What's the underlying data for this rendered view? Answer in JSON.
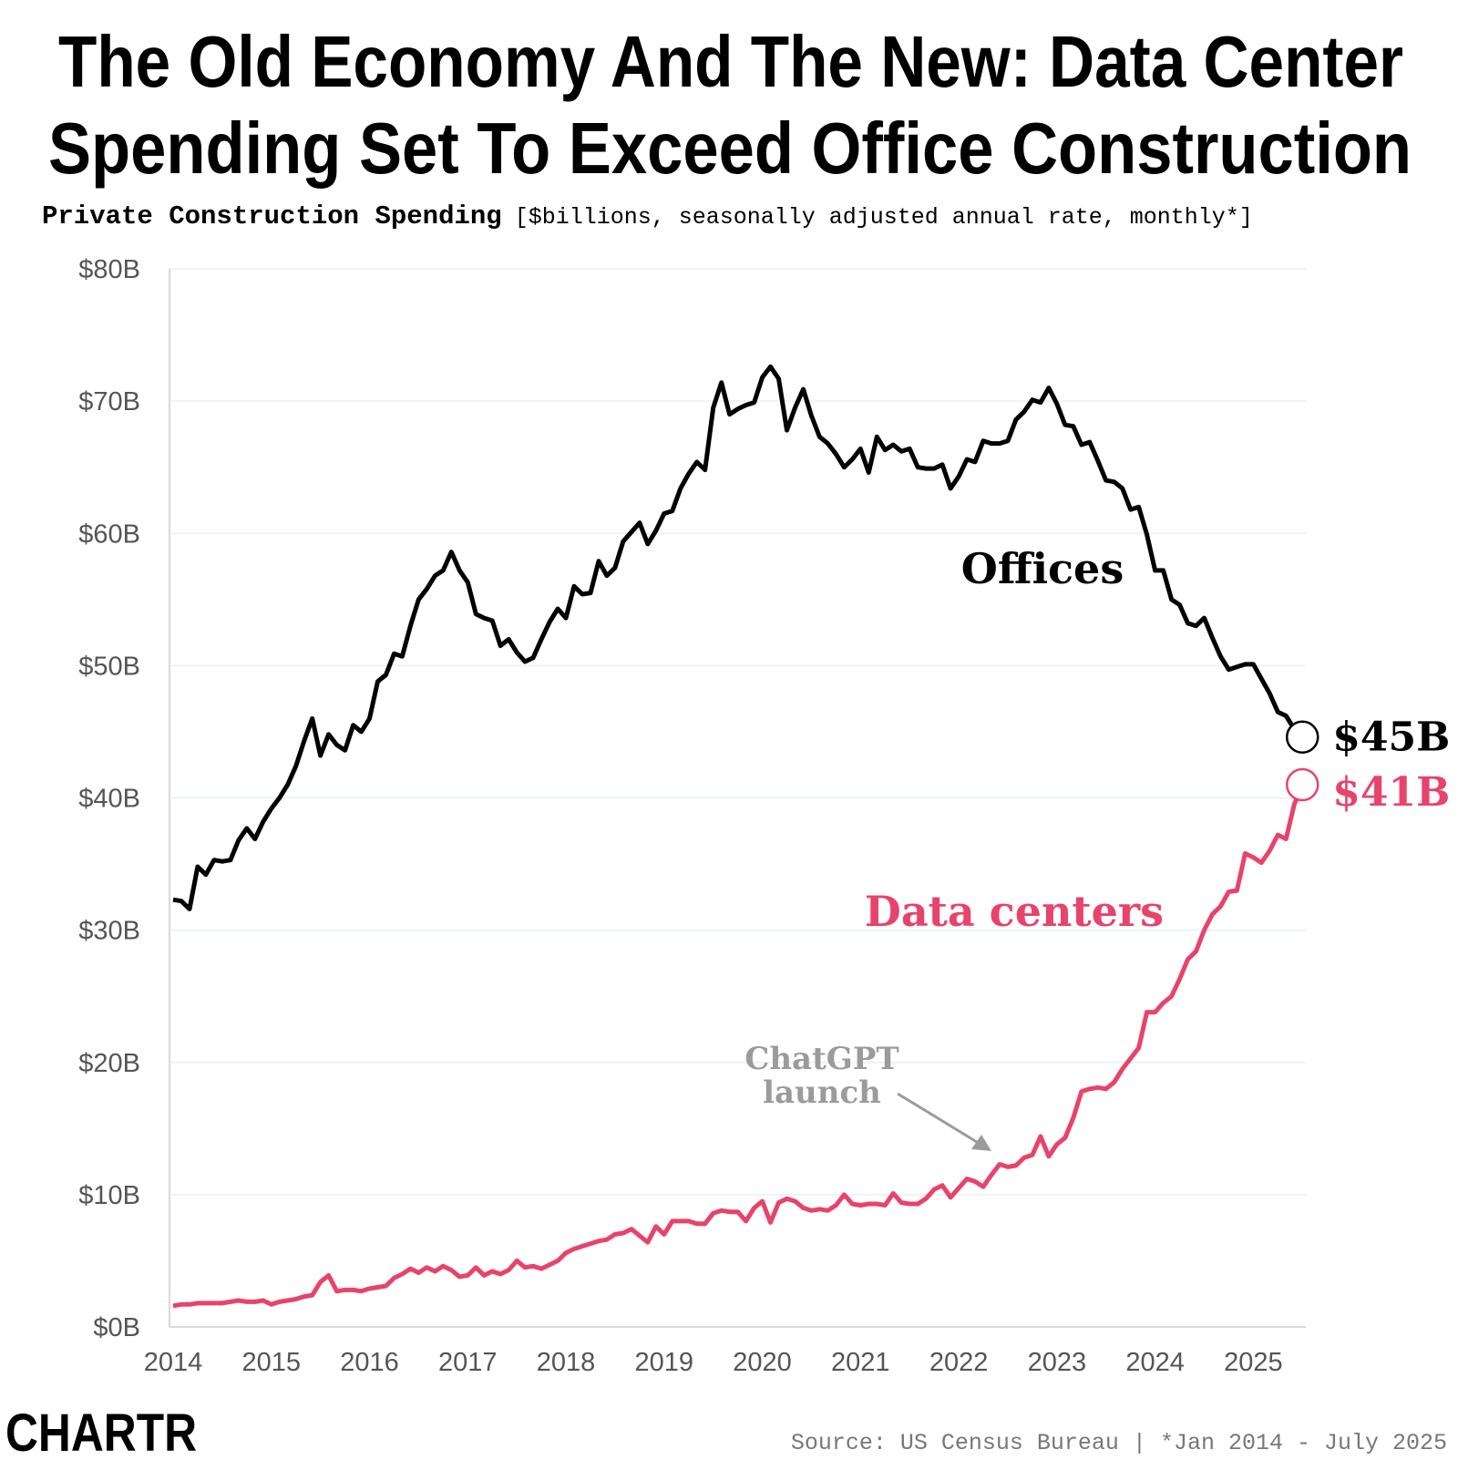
{
  "chart_data": {
    "type": "line",
    "title": [
      "The Old Economy And The New: Data Center",
      "Spending Set To Exceed Office Construction"
    ],
    "subtitle": {
      "bold": "Private Construction Spending",
      "regular": "[$billions, seasonally adjusted annual rate, monthly*]"
    },
    "categories": [
      "2014",
      null,
      null,
      null,
      null,
      null,
      null,
      null,
      null,
      null,
      null,
      null,
      "2015",
      null,
      null,
      null,
      null,
      null,
      null,
      null,
      null,
      null,
      null,
      null,
      "2016",
      null,
      null,
      null,
      null,
      null,
      null,
      null,
      null,
      null,
      null,
      null,
      "2017",
      null,
      null,
      null,
      null,
      null,
      null,
      null,
      null,
      null,
      null,
      null,
      "2018",
      null,
      null,
      null,
      null,
      null,
      null,
      null,
      null,
      null,
      null,
      null,
      "2019",
      null,
      null,
      null,
      null,
      null,
      null,
      null,
      null,
      null,
      null,
      null,
      "2020",
      null,
      null,
      null,
      null,
      null,
      null,
      null,
      null,
      null,
      null,
      null,
      "2021",
      null,
      null,
      null,
      null,
      null,
      null,
      null,
      null,
      null,
      null,
      null,
      "2022",
      null,
      null,
      null,
      null,
      null,
      null,
      null,
      null,
      null,
      null,
      null,
      "2023",
      null,
      null,
      null,
      null,
      null,
      null,
      null,
      null,
      null,
      null,
      null,
      "2024",
      null,
      null,
      null,
      null,
      null,
      null,
      null,
      null,
      null,
      null,
      null,
      "2025",
      null,
      null,
      null,
      null,
      null,
      null
    ],
    "series": [
      {
        "name": "Offices",
        "color": "#000000",
        "end_label": "$45B",
        "values": [
          32.3,
          32.2,
          31.6,
          34.8,
          34.2,
          35.3,
          35.2,
          35.3,
          36.8,
          37.7,
          36.9,
          38.2,
          39.2,
          40.0,
          41.0,
          42.4,
          44.3,
          46.0,
          43.2,
          44.8,
          44.0,
          43.6,
          45.5,
          45.0,
          46.0,
          48.8,
          49.3,
          50.9,
          50.7,
          53.0,
          55.0,
          55.8,
          56.8,
          57.2,
          58.6,
          57.2,
          56.3,
          53.9,
          53.6,
          53.4,
          51.5,
          52.0,
          51.0,
          50.3,
          50.6,
          52.0,
          53.3,
          54.3,
          53.6,
          56.0,
          55.4,
          55.5,
          57.9,
          56.8,
          57.4,
          59.4,
          60.1,
          60.8,
          59.2,
          60.2,
          61.5,
          61.7,
          63.4,
          64.5,
          65.4,
          64.8,
          69.5,
          71.4,
          69.0,
          69.4,
          69.7,
          69.9,
          71.8,
          72.6,
          71.7,
          67.8,
          69.5,
          70.9,
          68.9,
          67.3,
          66.8,
          66.0,
          65.0,
          65.6,
          66.4,
          64.6,
          67.3,
          66.3,
          66.7,
          66.2,
          66.4,
          65.0,
          64.9,
          64.9,
          65.2,
          63.4,
          64.3,
          65.6,
          65.4,
          67.0,
          66.8,
          66.8,
          67.0,
          68.6,
          69.2,
          70.1,
          69.9,
          71.0,
          69.8,
          68.2,
          68.1,
          66.7,
          66.9,
          65.5,
          64.0,
          63.9,
          63.4,
          61.8,
          62.0,
          59.9,
          57.2,
          57.2,
          55.0,
          54.6,
          53.2,
          53.0,
          53.6,
          52.1,
          50.7,
          49.7,
          49.9,
          50.1,
          50.1,
          49.0,
          47.9,
          46.5,
          46.2,
          45.2,
          44.6
        ]
      },
      {
        "name": "Data centers",
        "color": "#e8436a",
        "end_label": "$41B",
        "values": [
          1.6,
          1.7,
          1.7,
          1.8,
          1.8,
          1.8,
          1.8,
          1.9,
          2.0,
          1.9,
          1.9,
          2.0,
          1.7,
          1.9,
          2.0,
          2.1,
          2.3,
          2.4,
          3.4,
          3.9,
          2.7,
          2.8,
          2.8,
          2.7,
          2.9,
          3.0,
          3.1,
          3.7,
          4.0,
          4.4,
          4.1,
          4.5,
          4.2,
          4.6,
          4.3,
          3.8,
          3.9,
          4.5,
          3.9,
          4.2,
          4.0,
          4.3,
          5.0,
          4.5,
          4.6,
          4.4,
          4.7,
          5.0,
          5.6,
          5.9,
          6.1,
          6.3,
          6.5,
          6.6,
          7.0,
          7.1,
          7.4,
          6.9,
          6.4,
          7.6,
          7.0,
          8.0,
          8.0,
          8.0,
          7.8,
          7.8,
          8.6,
          8.8,
          8.7,
          8.7,
          8.0,
          9.0,
          9.5,
          7.9,
          9.4,
          9.7,
          9.5,
          9.0,
          8.8,
          8.9,
          8.8,
          9.2,
          10.0,
          9.3,
          9.2,
          9.3,
          9.3,
          9.2,
          10.1,
          9.4,
          9.3,
          9.3,
          9.7,
          10.4,
          10.7,
          9.8,
          10.5,
          11.2,
          11.0,
          10.6,
          11.5,
          12.3,
          12.1,
          12.2,
          12.8,
          13.0,
          14.4,
          12.9,
          13.8,
          14.3,
          15.8,
          17.8,
          18.0,
          18.1,
          18.0,
          18.5,
          19.5,
          20.3,
          21.1,
          23.8,
          23.8,
          24.5,
          25.0,
          26.3,
          27.8,
          28.4,
          30.0,
          31.2,
          31.8,
          32.9,
          33.0,
          35.8,
          35.5,
          35.1,
          36.0,
          37.2,
          36.9,
          39.5,
          41.0
        ]
      }
    ],
    "ylim": [
      0,
      80
    ],
    "yticks": [
      {
        "value": 0,
        "label": "$0B"
      },
      {
        "value": 10,
        "label": "$10B"
      },
      {
        "value": 20,
        "label": "$20B"
      },
      {
        "value": 30,
        "label": "$30B"
      },
      {
        "value": 40,
        "label": "$40B"
      },
      {
        "value": 50,
        "label": "$50B"
      },
      {
        "value": 60,
        "label": "$60B"
      },
      {
        "value": 70,
        "label": "$70B"
      },
      {
        "value": 80,
        "label": "$80B"
      }
    ],
    "grid": true,
    "annotation": [
      "ChatGPT",
      "launch"
    ],
    "source": "Source: US Census Bureau | *Jan 2014 - July 2025",
    "logo": "CHARTR"
  }
}
